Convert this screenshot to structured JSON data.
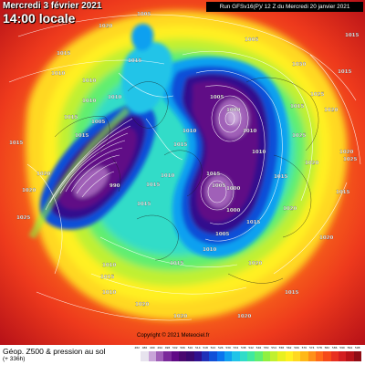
{
  "header": {
    "date": "Mercredi 3 février 2021",
    "time": "14:00 locale",
    "run": "Run GFSv16(P)/ 12 Z du Mercredi 20 janvier 2021"
  },
  "legend": {
    "title": "Géop. Z500 & pression au sol",
    "subtitle": "(+ 336h)",
    "ticks": [
      "482",
      "486",
      "490",
      "494",
      "498",
      "502",
      "506",
      "510",
      "514",
      "518",
      "522",
      "526",
      "530",
      "534",
      "538",
      "542",
      "546",
      "550",
      "554",
      "558",
      "562",
      "566",
      "570",
      "574",
      "578",
      "582",
      "586",
      "590",
      "594",
      "598"
    ],
    "colors": [
      "#ffffff",
      "#e7e3ee",
      "#c8a4d8",
      "#a060b8",
      "#7a2a9a",
      "#600a86",
      "#4a0870",
      "#3a0870",
      "#30108e",
      "#2030b8",
      "#1050d8",
      "#0a74ee",
      "#10a0f0",
      "#20c4e8",
      "#30dcc8",
      "#40e8a0",
      "#60ee70",
      "#90f040",
      "#c0f030",
      "#e8f020",
      "#fff020",
      "#ffd820",
      "#ffb818",
      "#ff9018",
      "#ff6a18",
      "#f64a18",
      "#e83020",
      "#d41e20",
      "#b81218",
      "#900c14"
    ],
    "copyright": "Copyright © 2021 Meteociel.fr"
  },
  "pressure_labels": [
    "1005",
    "1005",
    "1030",
    "1010",
    "1010",
    "1015",
    "1010",
    "1010",
    "1015",
    "1025",
    "1015",
    "1020",
    "1015",
    "1005",
    "1000",
    "1010",
    "1015",
    "1005",
    "1000",
    "990",
    "1015",
    "1020",
    "1000",
    "1005",
    "1010",
    "1015",
    "1025",
    "1020",
    "1015",
    "1020",
    "1010",
    "1015",
    "1010",
    "1015",
    "1010",
    "1020",
    "1020",
    "1015",
    "1005",
    "1010",
    "1015",
    "1015",
    "1020",
    "1025",
    "1020",
    "1015",
    "1020",
    "1020",
    "1020",
    "1015",
    "1010",
    "1025",
    "1015",
    "1020",
    "1015",
    "1015"
  ],
  "map": {
    "accent_colors": {
      "outer": "#e02a20",
      "mid": "#ffb020",
      "jet": "#90f040",
      "trough": "#1040c8",
      "core": "#600a86"
    }
  }
}
